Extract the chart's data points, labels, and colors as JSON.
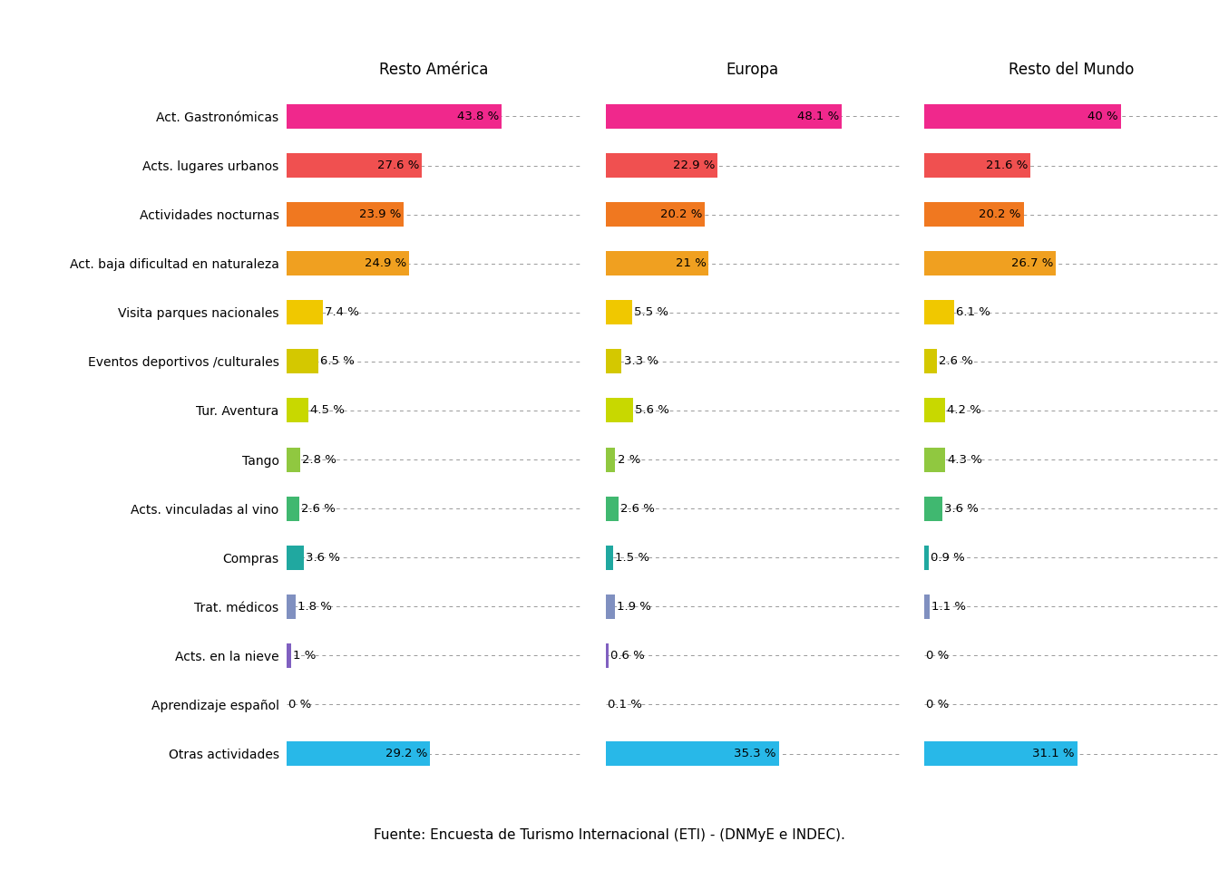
{
  "categories": [
    "Act. Gastronómicas",
    "Acts. lugares urbanos",
    "Actividades nocturnas",
    "Act. baja dificultad en naturaleza",
    "Visita parques nacionales",
    "Eventos deportivos /culturales",
    "Tur. Aventura",
    "Tango",
    "Acts. vinculadas al vino",
    "Compras",
    "Trat. médicos",
    "Acts. en la nieve",
    "Aprendizaje español",
    "Otras actividades"
  ],
  "groups": [
    "Resto América",
    "Europa",
    "Resto del Mundo"
  ],
  "values": {
    "Resto América": [
      43.8,
      27.6,
      23.9,
      24.9,
      7.4,
      6.5,
      4.5,
      2.8,
      2.6,
      3.6,
      1.8,
      1.0,
      0.0,
      29.2
    ],
    "Europa": [
      48.1,
      22.9,
      20.2,
      21.0,
      5.5,
      3.3,
      5.6,
      2.0,
      2.6,
      1.5,
      1.9,
      0.6,
      0.1,
      35.3
    ],
    "Resto del Mundo": [
      40.0,
      21.6,
      20.2,
      26.7,
      6.1,
      2.6,
      4.2,
      4.3,
      3.6,
      0.9,
      1.1,
      0.0,
      0.0,
      31.1
    ]
  },
  "labels": {
    "Resto América": [
      "43.8 %",
      "27.6 %",
      "23.9 %",
      "24.9 %",
      "7.4 %",
      "6.5 %",
      "4.5 %",
      "2.8 %",
      "2.6 %",
      "3.6 %",
      "1.8 %",
      "1 %",
      "0 %",
      "29.2 %"
    ],
    "Europa": [
      "48.1 %",
      "22.9 %",
      "20.2 %",
      "21 %",
      "5.5 %",
      "3.3 %",
      "5.6 %",
      "2 %",
      "2.6 %",
      "1.5 %",
      "1.9 %",
      "0.6 %",
      "0.1 %",
      "35.3 %"
    ],
    "Resto del Mundo": [
      "40 %",
      "21.6 %",
      "20.2 %",
      "26.7 %",
      "6.1 %",
      "2.6 %",
      "4.2 %",
      "4.3 %",
      "3.6 %",
      "0.9 %",
      "1.1 %",
      "0 %",
      "0 %",
      "31.1 %"
    ]
  },
  "bar_colors": [
    "#F0288C",
    "#F05050",
    "#F07820",
    "#F0A020",
    "#F0C800",
    "#D4C800",
    "#C8D800",
    "#90C840",
    "#40B870",
    "#20A8A0",
    "#8090C0",
    "#8060C0",
    "#C0C0D0",
    "#28B8E8"
  ],
  "background_color": "#ffffff",
  "footer": "Fuente: Encuesta de Turismo Internacional (ETI) - (DNMyE e INDEC).",
  "xlim": 60,
  "label_threshold": 8,
  "label_fontsize": 9.5,
  "cat_fontsize": 10,
  "title_fontsize": 12,
  "footer_fontsize": 11
}
